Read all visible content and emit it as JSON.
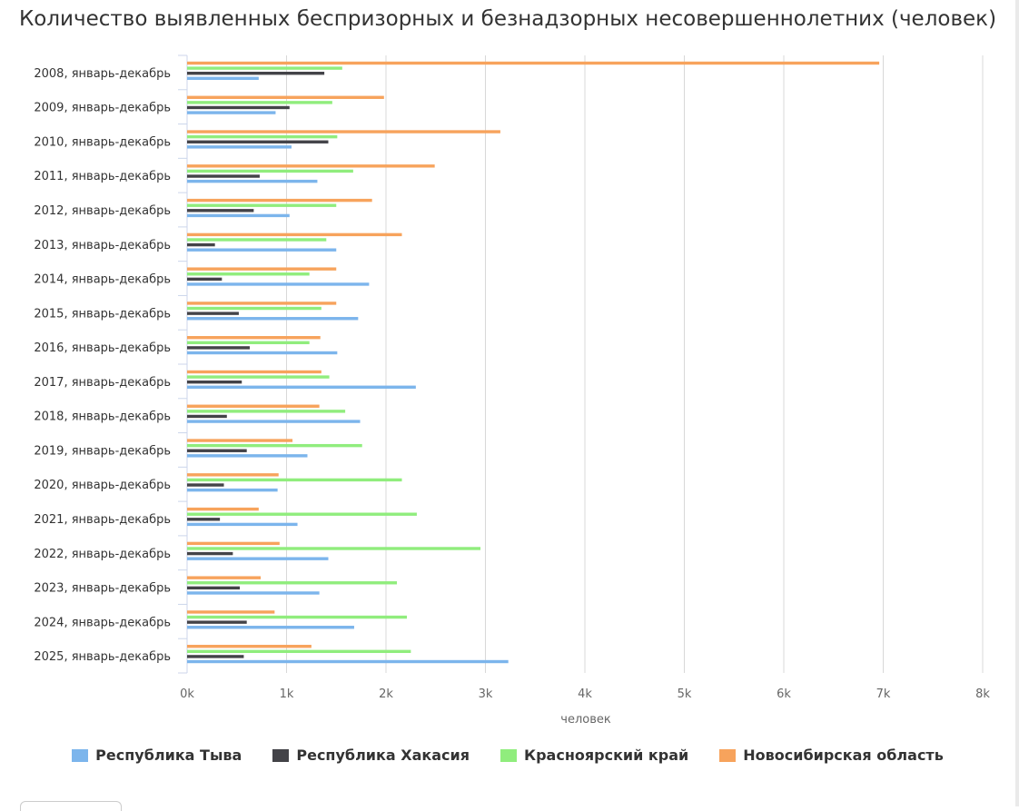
{
  "chart_data": {
    "type": "bar",
    "orientation": "horizontal",
    "title": "Количество выявленных беспризорных и безнадзорных несовершеннолетних (человек)",
    "xlabel": "человек",
    "xlim": [
      0,
      8000
    ],
    "x_ticks": [
      "0k",
      "1k",
      "2k",
      "3k",
      "4k",
      "5k",
      "6k",
      "7k",
      "8k"
    ],
    "grid": true,
    "legend_position": "bottom",
    "categories": [
      "2008, январь-декабрь",
      "2009, январь-декабрь",
      "2010, январь-декабрь",
      "2011, январь-декабрь",
      "2012, январь-декабрь",
      "2013, январь-декабрь",
      "2014, январь-декабрь",
      "2015, январь-декабрь",
      "2016, январь-декабрь",
      "2017, январь-декабрь",
      "2018, январь-декабрь",
      "2019, январь-декабрь",
      "2020, январь-декабрь",
      "2021, январь-декабрь",
      "2022, январь-декабрь",
      "2023, январь-декабрь",
      "2024, январь-декабрь",
      "2025, январь-декабрь"
    ],
    "series": [
      {
        "name": "Новосибирская область",
        "color": "#f7a35c",
        "values": [
          6960,
          1980,
          3150,
          2490,
          1860,
          2160,
          1500,
          1500,
          1340,
          1350,
          1330,
          1060,
          920,
          720,
          930,
          740,
          880,
          1250
        ]
      },
      {
        "name": "Красноярский край",
        "color": "#90ed7d",
        "values": [
          1560,
          1460,
          1510,
          1670,
          1500,
          1400,
          1230,
          1350,
          1230,
          1430,
          1590,
          1760,
          2160,
          2310,
          2950,
          2110,
          2210,
          2250
        ]
      },
      {
        "name": "Республика Хакасия",
        "color": "#434348",
        "values": [
          1380,
          1030,
          1420,
          730,
          670,
          280,
          350,
          520,
          630,
          550,
          400,
          600,
          370,
          330,
          460,
          530,
          600,
          570
        ]
      },
      {
        "name": "Республика Тыва",
        "color": "#7cb5ec",
        "values": [
          720,
          890,
          1050,
          1310,
          1030,
          1500,
          1830,
          1720,
          1510,
          2300,
          1740,
          1210,
          910,
          1110,
          1420,
          1330,
          1680,
          3230
        ]
      }
    ]
  },
  "legend": [
    {
      "label": "Республика Тыва",
      "color": "#7cb5ec"
    },
    {
      "label": "Республика Хакасия",
      "color": "#434348"
    },
    {
      "label": "Красноярский край",
      "color": "#90ed7d"
    },
    {
      "label": "Новосибирская область",
      "color": "#f7a35c"
    }
  ]
}
